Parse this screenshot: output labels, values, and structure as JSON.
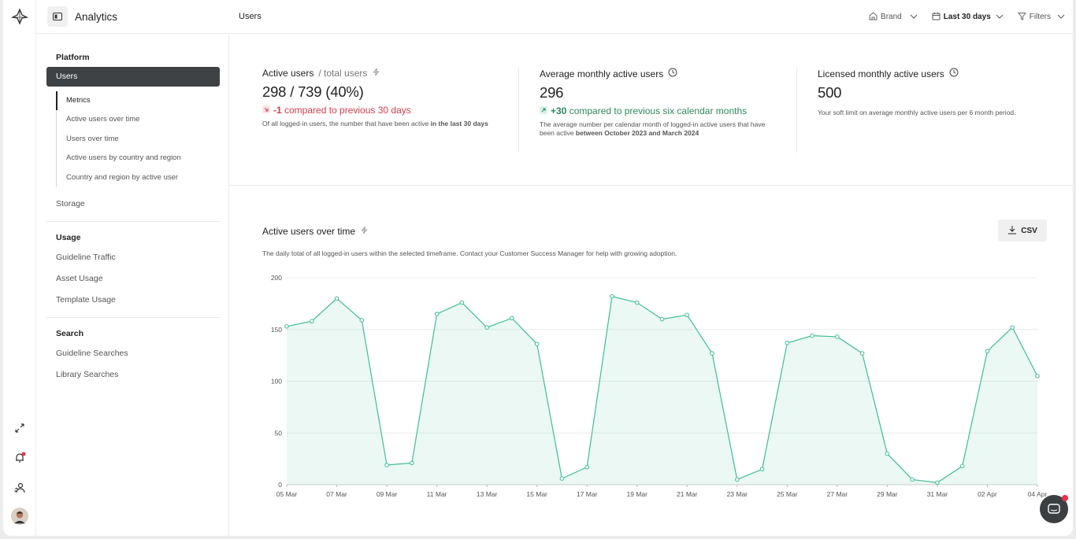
{
  "app": {
    "title": "Analytics"
  },
  "header": {
    "page_title": "Users",
    "brand_label": "Brand",
    "timeframe_label": "Last 30 days",
    "filters_label": "Filters"
  },
  "sidebar": {
    "sections": [
      {
        "heading": "Platform",
        "items": [
          "Users"
        ],
        "subitems": [
          "Metrics",
          "Active users over time",
          "Users over time",
          "Active users by country and region",
          "Country and region by active user"
        ],
        "after": [
          "Storage"
        ]
      },
      {
        "heading": "Usage",
        "items": [
          "Guideline Traffic",
          "Asset Usage",
          "Template Usage"
        ]
      },
      {
        "heading": "Search",
        "items": [
          "Guideline Searches",
          "Library Searches"
        ]
      }
    ]
  },
  "cards": [
    {
      "title": "Active users",
      "title_suffix": "/ total users",
      "value": "298 / 739 (40%)",
      "delta_value": "-1",
      "delta_text": " compared to previous 30 days",
      "desc": "Of all logged-in users, the number that have been active",
      "desc_bold": "in the last 30 days"
    },
    {
      "title": "Average monthly active users",
      "value": "296",
      "delta_value": "+30",
      "delta_text": " compared to previous six calendar months",
      "desc": "The average number per calendar month of logged-in active users that have been active",
      "desc_bold": "between October 2023 and March 2024"
    },
    {
      "title": "Licensed monthly active users",
      "value": "500",
      "desc": "Your soft limit on average monthly active users per 6 month period."
    }
  ],
  "chart_section": {
    "title": "Active users over time",
    "description": "The daily total of all logged-in users within the selected timeframe. Contact your Customer Success Manager for help with growing adoption.",
    "csv_label": "CSV"
  },
  "colors": {
    "accent": "#3fbf8f",
    "negative": "#d63c4a",
    "positive": "#2f8a5f",
    "active_nav": "#3f4245"
  },
  "chart_data": {
    "type": "area",
    "title": "Active users over time",
    "xlabel": "",
    "ylabel": "",
    "ylim": [
      0,
      200
    ],
    "yticks": [
      0,
      50,
      100,
      150,
      200
    ],
    "x": [
      "05 Mar",
      "06 Mar",
      "07 Mar",
      "08 Mar",
      "09 Mar",
      "10 Mar",
      "11 Mar",
      "12 Mar",
      "13 Mar",
      "14 Mar",
      "15 Mar",
      "16 Mar",
      "17 Mar",
      "18 Mar",
      "19 Mar",
      "20 Mar",
      "21 Mar",
      "22 Mar",
      "23 Mar",
      "24 Mar",
      "25 Mar",
      "26 Mar",
      "27 Mar",
      "28 Mar",
      "29 Mar",
      "30 Mar",
      "31 Mar",
      "01 Apr",
      "02 Apr",
      "03 Apr",
      "04 Apr"
    ],
    "xtick_labels": [
      "05 Mar",
      "07 Mar",
      "09 Mar",
      "11 Mar",
      "13 Mar",
      "15 Mar",
      "17 Mar",
      "19 Mar",
      "21 Mar",
      "23 Mar",
      "25 Mar",
      "27 Mar",
      "29 Mar",
      "31 Mar",
      "02 Apr",
      "04 Apr"
    ],
    "values": [
      153,
      158,
      180,
      159,
      19,
      21,
      165,
      176,
      152,
      161,
      136,
      6,
      17,
      182,
      176,
      160,
      164,
      127,
      5,
      15,
      137,
      144,
      143,
      127,
      30,
      5,
      2,
      18,
      129,
      152,
      105
    ],
    "grid": true
  }
}
